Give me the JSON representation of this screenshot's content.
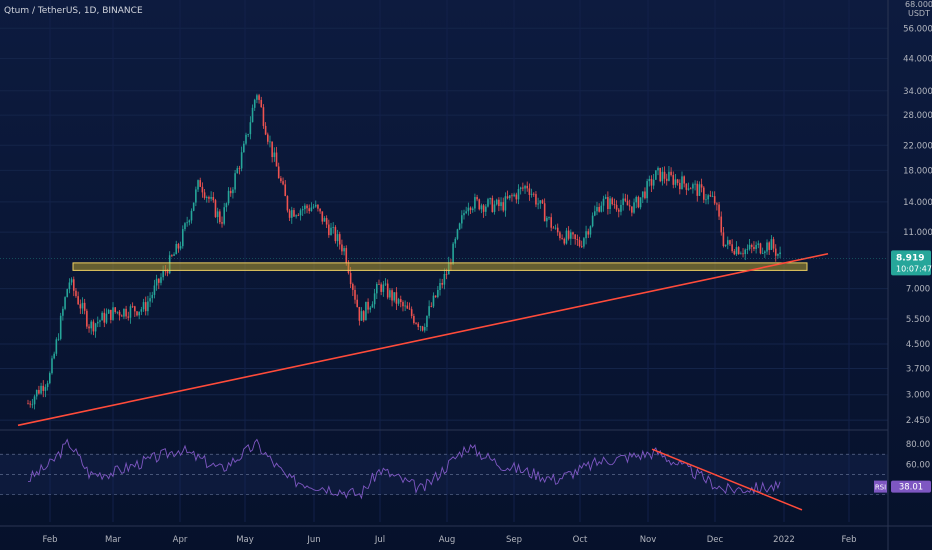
{
  "header": {
    "symbol": "Qtum / TetherUS, 1D, BINANCE"
  },
  "colors": {
    "background_top": "#0d1b3f",
    "background_bottom": "#07122e",
    "up_candle": "#26a69a",
    "down_candle": "#ef5350",
    "trendline": "#ff4b3a",
    "zone_fill": "#b09a2e",
    "zone_border": "#f0d060",
    "rsi_line": "#7e57c2",
    "price_badge": "#26a69a",
    "rsi_badge": "#7e57c2"
  },
  "price_axis": {
    "unit_top": "68.000",
    "unit_label": "USDT",
    "ticks": [
      "56.000",
      "44.000",
      "34.000",
      "28.000",
      "22.000",
      "18.000",
      "14.000",
      "11.000",
      "7.000",
      "5.500",
      "4.500",
      "3.700",
      "3.000",
      "2.450"
    ],
    "current_price": "8.919",
    "countdown": "10:07:47"
  },
  "rsi_axis": {
    "ticks": [
      "80.00",
      "60.00"
    ],
    "label": "RSI",
    "value": "38.01"
  },
  "time_axis": {
    "ticks": [
      "Feb",
      "Mar",
      "Apr",
      "May",
      "Jun",
      "Jul",
      "Aug",
      "Sep",
      "Oct",
      "Nov",
      "Dec",
      "2022",
      "Feb"
    ]
  },
  "chart_data": {
    "type": "candlestick",
    "scale": "log",
    "x_labels": [
      "Feb",
      "Mar",
      "Apr",
      "May",
      "Jun",
      "Jul",
      "Aug",
      "Sep",
      "Oct",
      "Nov",
      "Dec",
      "2022",
      "Feb"
    ],
    "ylim": [
      2.3,
      68
    ],
    "ohlc_approx": [
      {
        "date": "Jan 20",
        "close": 2.8
      },
      {
        "date": "Feb 1",
        "close": 3.5
      },
      {
        "date": "Feb 10",
        "close": 7.5
      },
      {
        "date": "Feb 20",
        "close": 5.2
      },
      {
        "date": "Mar 1",
        "close": 5.8
      },
      {
        "date": "Mar 15",
        "close": 6.0
      },
      {
        "date": "Apr 1",
        "close": 10.0
      },
      {
        "date": "Apr 10",
        "close": 16.5
      },
      {
        "date": "Apr 20",
        "close": 12.0
      },
      {
        "date": "May 1",
        "close": 22.0
      },
      {
        "date": "May 6",
        "close": 34.0
      },
      {
        "date": "May 12",
        "close": 22.0
      },
      {
        "date": "May 20",
        "close": 13.0
      },
      {
        "date": "Jun 1",
        "close": 13.5
      },
      {
        "date": "Jun 15",
        "close": 9.5
      },
      {
        "date": "Jun 22",
        "close": 5.5
      },
      {
        "date": "Jul 1",
        "close": 7.2
      },
      {
        "date": "Jul 20",
        "close": 5.2
      },
      {
        "date": "Aug 1",
        "close": 8.0
      },
      {
        "date": "Aug 10",
        "close": 14.0
      },
      {
        "date": "Aug 25",
        "close": 13.5
      },
      {
        "date": "Sep 7",
        "close": 16.0
      },
      {
        "date": "Sep 20",
        "close": 11.0
      },
      {
        "date": "Oct 1",
        "close": 10.0
      },
      {
        "date": "Oct 10",
        "close": 14.0
      },
      {
        "date": "Oct 25",
        "close": 13.5
      },
      {
        "date": "Nov 5",
        "close": 17.5
      },
      {
        "date": "Nov 20",
        "close": 16.0
      },
      {
        "date": "Dec 1",
        "close": 14.0
      },
      {
        "date": "Dec 5",
        "close": 10.0
      },
      {
        "date": "Dec 15",
        "close": 9.5
      },
      {
        "date": "Dec 25",
        "close": 10.0
      },
      {
        "date": "Dec 30",
        "close": 8.9
      }
    ],
    "support_zone": {
      "low": 8.1,
      "high": 8.6
    },
    "rsi_series_approx": [
      {
        "date": "Jan 20",
        "rsi": 45
      },
      {
        "date": "Feb 1",
        "rsi": 60
      },
      {
        "date": "Feb 10",
        "rsi": 82
      },
      {
        "date": "Feb 20",
        "rsi": 50
      },
      {
        "date": "Mar 1",
        "rsi": 52
      },
      {
        "date": "Apr 1",
        "rsi": 75
      },
      {
        "date": "Apr 20",
        "rsi": 55
      },
      {
        "date": "May 6",
        "rsi": 80
      },
      {
        "date": "May 20",
        "rsi": 45
      },
      {
        "date": "Jun 22",
        "rsi": 30
      },
      {
        "date": "Jul 1",
        "rsi": 55
      },
      {
        "date": "Jul 20",
        "rsi": 35
      },
      {
        "date": "Aug 10",
        "rsi": 78
      },
      {
        "date": "Aug 25",
        "rsi": 60
      },
      {
        "date": "Sep 20",
        "rsi": 45
      },
      {
        "date": "Oct 10",
        "rsi": 63
      },
      {
        "date": "Nov 5",
        "rsi": 72
      },
      {
        "date": "Dec 5",
        "rsi": 35
      },
      {
        "date": "Dec 30",
        "rsi": 38.01
      }
    ]
  }
}
